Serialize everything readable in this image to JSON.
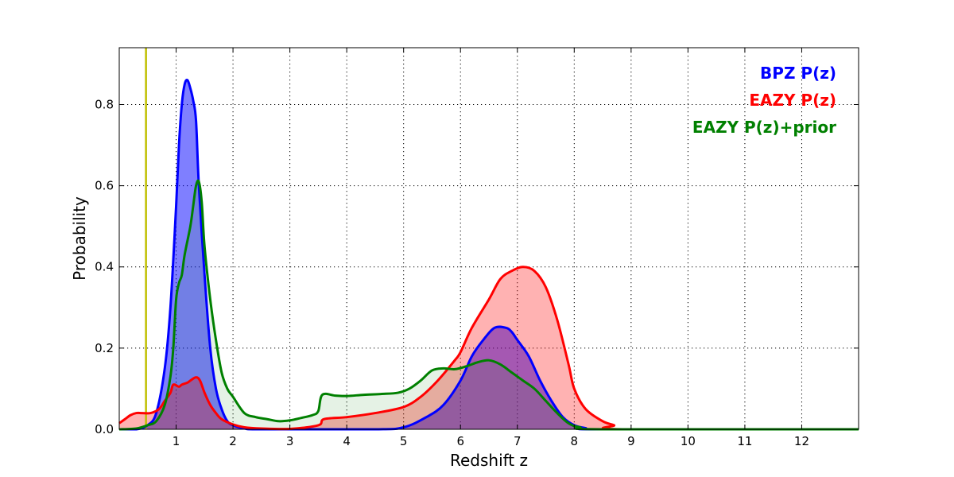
{
  "chart_data": {
    "type": "area",
    "xlabel": "Redshift z",
    "ylabel": "Probability",
    "xlim": [
      0,
      13
    ],
    "ylim": [
      0,
      0.94
    ],
    "xticks": [
      1,
      2,
      3,
      4,
      5,
      6,
      7,
      8,
      9,
      10,
      11,
      12
    ],
    "yticks": [
      0.0,
      0.2,
      0.4,
      0.6,
      0.8
    ],
    "ytick_labels": [
      "0.0",
      "0.2",
      "0.4",
      "0.6",
      "0.8"
    ],
    "grid": true,
    "legend_position": "top-right",
    "vertical_line": {
      "x": 0.47,
      "color": "#bfbf00"
    },
    "series": [
      {
        "name": "BPZ P(z)",
        "color": "#0000ff",
        "fill": "#0000ff",
        "fill_opacity": 0.5,
        "points": [
          [
            0.0,
            0.0
          ],
          [
            0.3,
            0.0
          ],
          [
            0.5,
            0.01
          ],
          [
            0.65,
            0.04
          ],
          [
            0.8,
            0.15
          ],
          [
            0.9,
            0.3
          ],
          [
            1.0,
            0.55
          ],
          [
            1.05,
            0.7
          ],
          [
            1.1,
            0.8
          ],
          [
            1.15,
            0.85
          ],
          [
            1.2,
            0.86
          ],
          [
            1.25,
            0.84
          ],
          [
            1.3,
            0.81
          ],
          [
            1.35,
            0.76
          ],
          [
            1.4,
            0.6
          ],
          [
            1.5,
            0.38
          ],
          [
            1.6,
            0.2
          ],
          [
            1.7,
            0.1
          ],
          [
            1.8,
            0.05
          ],
          [
            1.9,
            0.02
          ],
          [
            2.0,
            0.01
          ],
          [
            2.2,
            0.002
          ],
          [
            2.5,
            0.0
          ],
          [
            4.5,
            0.0
          ],
          [
            5.0,
            0.005
          ],
          [
            5.4,
            0.03
          ],
          [
            5.7,
            0.06
          ],
          [
            6.0,
            0.12
          ],
          [
            6.2,
            0.18
          ],
          [
            6.4,
            0.22
          ],
          [
            6.6,
            0.25
          ],
          [
            6.8,
            0.25
          ],
          [
            6.9,
            0.24
          ],
          [
            7.0,
            0.22
          ],
          [
            7.2,
            0.18
          ],
          [
            7.4,
            0.12
          ],
          [
            7.6,
            0.07
          ],
          [
            7.8,
            0.03
          ],
          [
            8.0,
            0.01
          ],
          [
            8.2,
            0.003
          ],
          [
            8.5,
            0.0
          ],
          [
            13.0,
            0.0
          ]
        ]
      },
      {
        "name": "EAZY P(z)",
        "color": "#ff0000",
        "fill": "#ff0000",
        "fill_opacity": 0.3,
        "points": [
          [
            0.0,
            0.015
          ],
          [
            0.1,
            0.025
          ],
          [
            0.2,
            0.035
          ],
          [
            0.3,
            0.04
          ],
          [
            0.4,
            0.04
          ],
          [
            0.55,
            0.04
          ],
          [
            0.7,
            0.05
          ],
          [
            0.8,
            0.07
          ],
          [
            0.9,
            0.09
          ],
          [
            0.95,
            0.11
          ],
          [
            1.05,
            0.105
          ],
          [
            1.1,
            0.11
          ],
          [
            1.2,
            0.115
          ],
          [
            1.25,
            0.12
          ],
          [
            1.35,
            0.128
          ],
          [
            1.42,
            0.12
          ],
          [
            1.5,
            0.09
          ],
          [
            1.6,
            0.06
          ],
          [
            1.7,
            0.04
          ],
          [
            1.8,
            0.025
          ],
          [
            2.0,
            0.012
          ],
          [
            2.2,
            0.005
          ],
          [
            2.5,
            0.002
          ],
          [
            3.0,
            0.001
          ],
          [
            3.5,
            0.01
          ],
          [
            3.6,
            0.025
          ],
          [
            4.0,
            0.03
          ],
          [
            4.5,
            0.04
          ],
          [
            5.0,
            0.055
          ],
          [
            5.3,
            0.08
          ],
          [
            5.6,
            0.12
          ],
          [
            5.9,
            0.17
          ],
          [
            6.0,
            0.19
          ],
          [
            6.2,
            0.25
          ],
          [
            6.5,
            0.32
          ],
          [
            6.7,
            0.37
          ],
          [
            6.9,
            0.39
          ],
          [
            7.1,
            0.4
          ],
          [
            7.3,
            0.39
          ],
          [
            7.5,
            0.35
          ],
          [
            7.7,
            0.27
          ],
          [
            7.9,
            0.16
          ],
          [
            8.0,
            0.1
          ],
          [
            8.2,
            0.05
          ],
          [
            8.5,
            0.02
          ],
          [
            8.7,
            0.01
          ],
          [
            8.85,
            0.0
          ],
          [
            13.0,
            0.0
          ]
        ]
      },
      {
        "name": "EAZY P(z)+prior",
        "color": "#008000",
        "fill": "#008000",
        "fill_opacity": 0.1,
        "points": [
          [
            0.0,
            0.0
          ],
          [
            0.3,
            0.002
          ],
          [
            0.5,
            0.01
          ],
          [
            0.65,
            0.02
          ],
          [
            0.8,
            0.06
          ],
          [
            0.9,
            0.13
          ],
          [
            0.95,
            0.2
          ],
          [
            1.0,
            0.32
          ],
          [
            1.05,
            0.36
          ],
          [
            1.1,
            0.38
          ],
          [
            1.15,
            0.43
          ],
          [
            1.25,
            0.5
          ],
          [
            1.3,
            0.55
          ],
          [
            1.35,
            0.6
          ],
          [
            1.4,
            0.61
          ],
          [
            1.45,
            0.56
          ],
          [
            1.5,
            0.45
          ],
          [
            1.6,
            0.32
          ],
          [
            1.7,
            0.22
          ],
          [
            1.8,
            0.14
          ],
          [
            1.9,
            0.1
          ],
          [
            2.0,
            0.08
          ],
          [
            2.2,
            0.04
          ],
          [
            2.4,
            0.03
          ],
          [
            2.6,
            0.025
          ],
          [
            2.8,
            0.02
          ],
          [
            3.0,
            0.022
          ],
          [
            3.2,
            0.028
          ],
          [
            3.4,
            0.035
          ],
          [
            3.5,
            0.045
          ],
          [
            3.57,
            0.085
          ],
          [
            3.8,
            0.083
          ],
          [
            4.0,
            0.082
          ],
          [
            4.3,
            0.085
          ],
          [
            4.6,
            0.087
          ],
          [
            4.9,
            0.09
          ],
          [
            5.1,
            0.1
          ],
          [
            5.3,
            0.12
          ],
          [
            5.5,
            0.145
          ],
          [
            5.7,
            0.15
          ],
          [
            5.9,
            0.148
          ],
          [
            6.1,
            0.155
          ],
          [
            6.3,
            0.165
          ],
          [
            6.5,
            0.17
          ],
          [
            6.7,
            0.16
          ],
          [
            6.9,
            0.14
          ],
          [
            7.1,
            0.12
          ],
          [
            7.3,
            0.1
          ],
          [
            7.5,
            0.07
          ],
          [
            7.7,
            0.04
          ],
          [
            7.9,
            0.015
          ],
          [
            8.1,
            0.005
          ],
          [
            8.5,
            0.0
          ],
          [
            13.0,
            0.0
          ]
        ]
      }
    ]
  }
}
